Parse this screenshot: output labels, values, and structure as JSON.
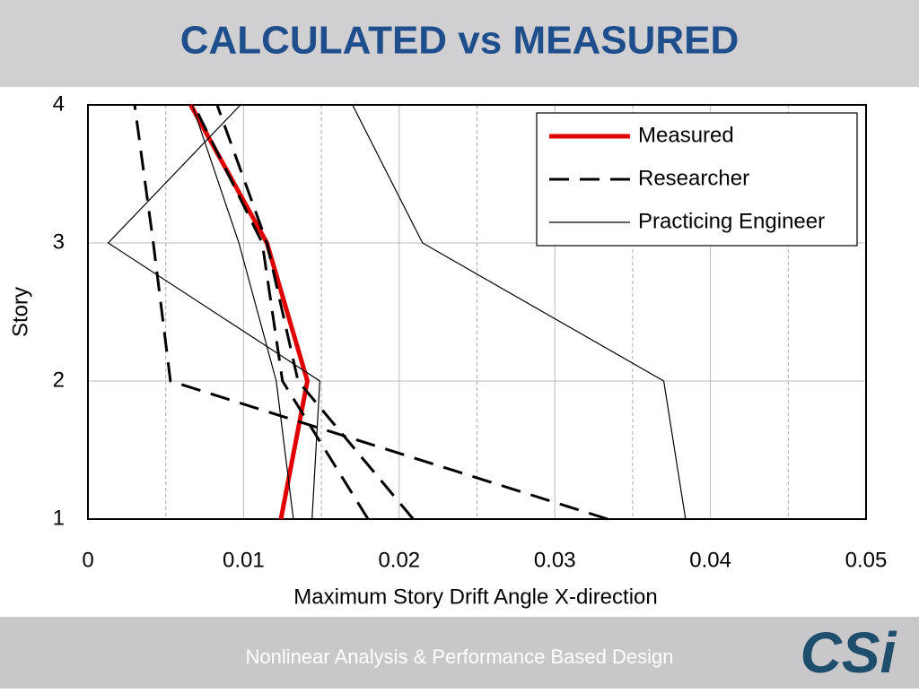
{
  "chart_data": {
    "type": "line",
    "title": "CALCULATED vs MEASURED",
    "xlabel": "Maximum Story Drift Angle X-direction",
    "ylabel": "Story",
    "stories": [
      1,
      2,
      3,
      4
    ],
    "xlim": [
      0,
      0.05
    ],
    "xticks": [
      0,
      0.01,
      0.02,
      0.03,
      0.04,
      0.05
    ],
    "x_minor_grid": [
      0.005,
      0.015,
      0.025,
      0.035,
      0.045
    ],
    "ylim": [
      1,
      4
    ],
    "yticks": [
      1,
      2,
      3,
      4
    ],
    "grid": true,
    "legend": "upper right",
    "series": [
      {
        "name": "Measured",
        "color": "#e00000",
        "style": "solid",
        "width": 5,
        "lines": [
          [
            0.0124,
            0.0141,
            0.0115,
            0.0066
          ]
        ]
      },
      {
        "name": "Researcher",
        "color": "#000000",
        "style": "dashed",
        "width": 3,
        "lines": [
          [
            0.0334,
            0.0053,
            0.0042,
            0.003
          ],
          [
            0.0209,
            0.0135,
            0.0115,
            0.0083
          ],
          [
            0.018,
            0.0125,
            0.0112,
            0.0068
          ]
        ]
      },
      {
        "name": "Practicing Engineer",
        "color": "#000000",
        "style": "solid",
        "width": 1.2,
        "lines": [
          [
            0.0384,
            0.037,
            0.0215,
            0.017
          ],
          [
            0.0144,
            0.0149,
            0.0013,
            0.0098
          ],
          [
            0.0132,
            0.0121,
            0.0097,
            0.0067
          ]
        ]
      }
    ]
  },
  "footer": "Nonlinear Analysis & Performance Based Design",
  "logo": "CSi"
}
